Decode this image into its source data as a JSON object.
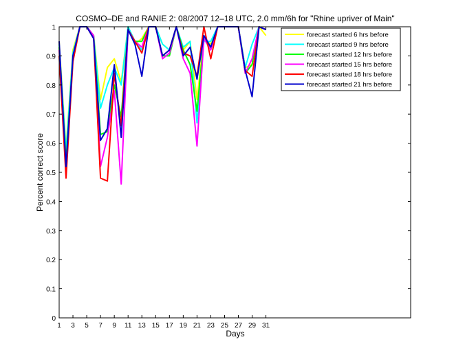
{
  "chart_data": {
    "type": "line",
    "title": "COSMO–DE and RANIE 2: 08/2007 12–18 UTC, 2.0 mm/6h for \"Rhine upriver of Main\"",
    "xlabel": "Days",
    "ylabel": "Percent correct score",
    "xlim": [
      1,
      52
    ],
    "ylim": [
      0,
      1
    ],
    "x_ticks": [
      1,
      3,
      5,
      7,
      9,
      11,
      13,
      15,
      17,
      19,
      21,
      23,
      25,
      27,
      29,
      31
    ],
    "y_ticks": [
      0,
      0.1,
      0.2,
      0.3,
      0.4,
      0.5,
      0.6,
      0.7,
      0.8,
      0.9,
      1
    ],
    "y_tick_labels": [
      "0",
      "0.1",
      "0.2",
      "0.3",
      "0.4",
      "0.5",
      "0.6",
      "0.7",
      "0.8",
      "0.9",
      "1"
    ],
    "legend_position": "top-right",
    "x": [
      1,
      2,
      3,
      4,
      5,
      6,
      7,
      8,
      9,
      10,
      11,
      12,
      13,
      14,
      15,
      16,
      17,
      18,
      19,
      20,
      21,
      22,
      23,
      24,
      25,
      26,
      27,
      28,
      29,
      30,
      31
    ],
    "series": [
      {
        "name": "forecast started 6 hrs before",
        "color": "#ffff00",
        "values": [
          0.95,
          0.58,
          0.92,
          1.0,
          1.0,
          0.97,
          0.75,
          0.86,
          0.89,
          0.81,
          1.0,
          0.94,
          0.96,
          1.0,
          1.0,
          0.94,
          0.92,
          1.0,
          0.92,
          0.95,
          0.75,
          0.96,
          0.94,
          1.0,
          1.0,
          1.0,
          1.0,
          0.86,
          0.87,
          1.0,
          0.97
        ]
      },
      {
        "name": "forecast started 9 hrs before",
        "color": "#00ffff",
        "values": [
          0.94,
          0.57,
          0.91,
          1.0,
          1.0,
          0.97,
          0.72,
          0.8,
          0.86,
          0.8,
          1.0,
          0.95,
          0.92,
          1.0,
          1.0,
          0.94,
          0.92,
          1.0,
          0.93,
          0.95,
          0.67,
          0.95,
          0.95,
          1.0,
          1.0,
          1.0,
          1.0,
          0.86,
          0.94,
          1.0,
          0.99
        ]
      },
      {
        "name": "forecast started 12 hrs before",
        "color": "#00ff00",
        "values": [
          0.93,
          0.54,
          0.89,
          1.0,
          1.0,
          0.97,
          0.63,
          0.64,
          0.8,
          0.69,
          0.99,
          0.95,
          0.95,
          1.0,
          1.0,
          0.9,
          0.9,
          1.0,
          0.92,
          0.87,
          0.71,
          0.96,
          0.93,
          1.0,
          1.0,
          1.0,
          1.0,
          0.84,
          0.87,
          1.0,
          0.99
        ]
      },
      {
        "name": "forecast started 15 hrs before",
        "color": "#ff00ff",
        "values": [
          0.92,
          0.52,
          0.89,
          1.0,
          1.0,
          0.97,
          0.52,
          0.62,
          0.78,
          0.46,
          0.99,
          0.95,
          0.93,
          1.0,
          1.0,
          0.89,
          0.91,
          1.0,
          0.89,
          0.84,
          0.59,
          0.96,
          0.92,
          1.0,
          1.0,
          1.0,
          1.0,
          0.84,
          0.89,
          1.0,
          0.99
        ]
      },
      {
        "name": "forecast started 18 hrs before",
        "color": "#ff0000",
        "values": [
          0.9,
          0.48,
          0.88,
          1.0,
          1.0,
          0.96,
          0.48,
          0.47,
          0.84,
          0.66,
          0.99,
          0.95,
          0.91,
          1.0,
          1.0,
          0.9,
          0.92,
          1.0,
          0.91,
          0.9,
          0.83,
          1.0,
          0.89,
          1.0,
          1.0,
          1.0,
          1.0,
          0.85,
          0.83,
          1.0,
          0.99
        ]
      },
      {
        "name": "forecast started 21 hrs before",
        "color": "#0000cc",
        "values": [
          0.95,
          0.52,
          0.9,
          1.0,
          1.0,
          0.96,
          0.61,
          0.65,
          0.87,
          0.62,
          0.99,
          0.94,
          0.83,
          1.0,
          1.0,
          0.9,
          0.92,
          1.0,
          0.9,
          0.93,
          0.82,
          0.97,
          0.93,
          1.0,
          1.0,
          1.0,
          1.0,
          0.85,
          0.76,
          1.0,
          0.99
        ]
      }
    ]
  }
}
